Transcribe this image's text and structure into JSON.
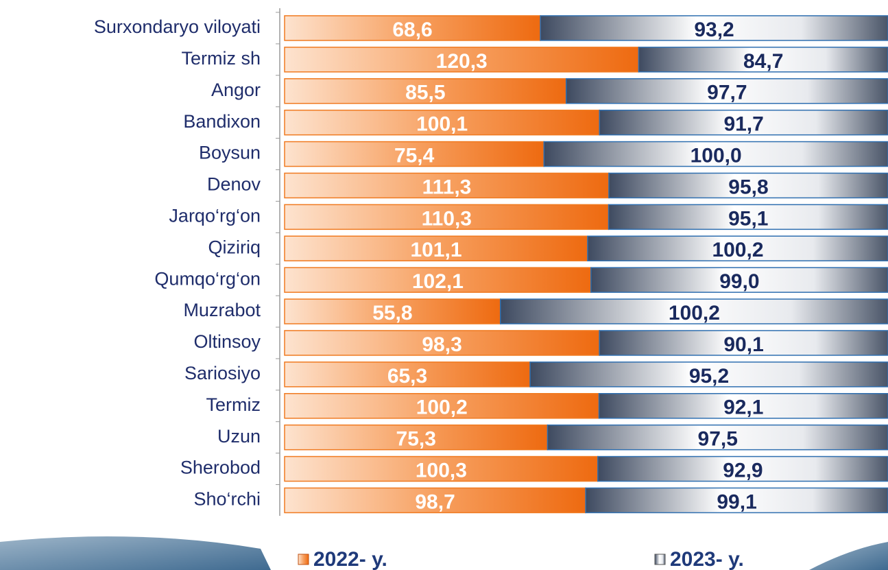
{
  "chart_data": {
    "type": "bar",
    "orientation": "horizontal",
    "stacked": "percent",
    "categories": [
      "Surxondaryo viloyati",
      "Termiz sh",
      "Angor",
      "Bandixon",
      "Boysun",
      "Denov",
      "Jarqo‘rg‘on",
      "Qiziriq",
      "Qumqo‘rg‘on",
      "Muzrabot",
      "Oltinsoy",
      "Sariosiyo",
      "Termiz",
      "Uzun",
      "Sherobod",
      "Sho‘rchi"
    ],
    "series": [
      {
        "name": "2022- y.",
        "color": "#f07a20",
        "values": [
          68.6,
          120.3,
          85.5,
          100.1,
          75.4,
          111.3,
          110.3,
          101.1,
          102.1,
          55.8,
          98.3,
          65.3,
          100.2,
          75.3,
          100.3,
          98.7
        ],
        "value_labels": [
          "68,6",
          "120,3",
          "85,5",
          "100,1",
          "75,4",
          "111,3",
          "110,3",
          "101,1",
          "102,1",
          "55,8",
          "98,3",
          "65,3",
          "100,2",
          "75,3",
          "100,3",
          "98,7"
        ]
      },
      {
        "name": "2023- y.",
        "color": "#6d7787",
        "values": [
          93.2,
          84.7,
          97.7,
          91.7,
          100.0,
          95.8,
          95.1,
          100.2,
          99.0,
          100.2,
          90.1,
          95.2,
          92.1,
          97.5,
          92.9,
          99.1
        ],
        "value_labels": [
          "93,2",
          "84,7",
          "97,7",
          "91,7",
          "100,0",
          "95,8",
          "95,1",
          "100,2",
          "99,0",
          "100,2",
          "90,1",
          "95,2",
          "92,1",
          "97,5",
          "92,9",
          "99,1"
        ]
      }
    ],
    "legend": "bottom"
  }
}
